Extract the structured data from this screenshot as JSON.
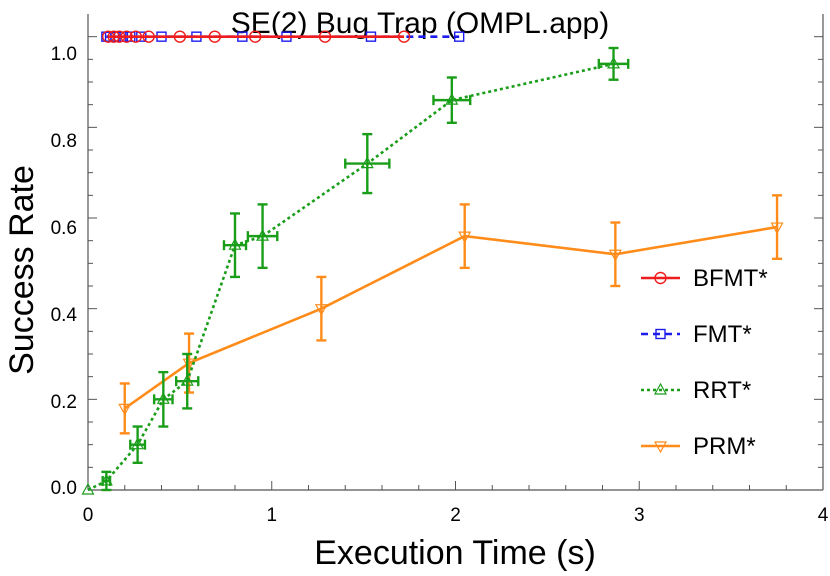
{
  "chart_data": {
    "type": "line",
    "title": "SE(2) Bug Trap (OMPL.app)",
    "xlabel": "Execution Time (s)",
    "ylabel": "Success Rate",
    "xlim": [
      0,
      4
    ],
    "ylim": [
      0,
      1.05
    ],
    "xticks": [
      "0",
      "1",
      "2",
      "3",
      "4"
    ],
    "yticks": [
      "0.0",
      "0.2",
      "0.4",
      "0.6",
      "0.8",
      "1.0"
    ],
    "legend_position": "right",
    "series": [
      {
        "name": "BFMT*",
        "color": "#ee1c1c",
        "marker": "circle",
        "line": "solid",
        "x": [
          0.11,
          0.14,
          0.17,
          0.21,
          0.26,
          0.33,
          0.5,
          0.69,
          0.91,
          1.29,
          1.72
        ],
        "y": [
          1,
          1,
          1,
          1,
          1,
          1,
          1,
          1,
          1,
          1,
          1
        ]
      },
      {
        "name": "FMT*",
        "color": "#1c1cee",
        "marker": "square",
        "line": "dashed",
        "x": [
          0.1,
          0.12,
          0.15,
          0.19,
          0.23,
          0.29,
          0.4,
          0.59,
          0.84,
          1.08,
          1.54,
          2.02
        ],
        "y": [
          1,
          1,
          1,
          1,
          1,
          1,
          1,
          1,
          1,
          1,
          1,
          1
        ]
      },
      {
        "name": "RRT*",
        "color": "#1a9e1a",
        "marker": "triangle-up",
        "line": "dotted",
        "x": [
          0.0,
          0.1,
          0.27,
          0.41,
          0.54,
          0.8,
          0.95,
          1.52,
          1.98,
          2.86
        ],
        "y": [
          0.0,
          0.02,
          0.1,
          0.2,
          0.24,
          0.54,
          0.56,
          0.72,
          0.86,
          0.94
        ],
        "xerr": [
          0,
          0.02,
          0.04,
          0.05,
          0.06,
          0.06,
          0.08,
          0.12,
          0.1,
          0.08
        ],
        "yerr": [
          0,
          0.02,
          0.04,
          0.06,
          0.06,
          0.07,
          0.07,
          0.065,
          0.05,
          0.035
        ]
      },
      {
        "name": "PRM*",
        "color": "#ff8c1a",
        "marker": "triangle-down",
        "line": "solid",
        "x": [
          0.2,
          0.55,
          1.27,
          2.05,
          2.87,
          3.75
        ],
        "y": [
          0.18,
          0.28,
          0.4,
          0.56,
          0.52,
          0.58
        ],
        "yerr": [
          0.055,
          0.065,
          0.07,
          0.07,
          0.07,
          0.07
        ]
      }
    ]
  }
}
